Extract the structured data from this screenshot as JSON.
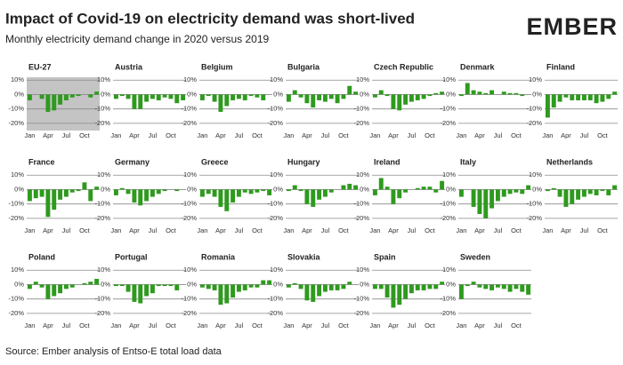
{
  "title": "Impact of Covid-19 on electricity demand was short-lived",
  "subtitle": "Monthly electricity demand change in 2020 versus 2019",
  "logo": "EMBER",
  "source": "Source: Ember analysis of Entso-E total load data",
  "chart_data": [
    {
      "type": "bar",
      "title": "EU-27",
      "highlight": "#c4c4c4",
      "color": "#2e9a1e",
      "categories": [
        "Jan",
        null,
        null,
        "Apr",
        null,
        null,
        "Jul",
        null,
        null,
        "Oct",
        null,
        null
      ],
      "values": [
        -4,
        0,
        -3,
        -12,
        -11,
        -7,
        -4,
        -2,
        -1,
        0,
        -2,
        2
      ],
      "ylim": [
        -25,
        12
      ],
      "yticks": [
        {
          "value": 10,
          "label": "10%"
        },
        {
          "value": 0,
          "label": "0%"
        },
        {
          "value": -10,
          "label": "-10%"
        },
        {
          "value": -20,
          "label": "-20%"
        }
      ],
      "grid": true
    },
    {
      "type": "bar",
      "title": "Austria",
      "color": "#2e9a1e",
      "categories": [
        "Jan",
        null,
        null,
        "Apr",
        null,
        null,
        "Jul",
        null,
        null,
        "Oct",
        null,
        null
      ],
      "values": [
        -3,
        -1,
        -3,
        -10,
        -10,
        -5,
        -3,
        -4,
        -2,
        -3,
        -6,
        -4
      ],
      "ylim": [
        -25,
        12
      ],
      "yticks": [
        {
          "value": 10,
          "label": "10%"
        },
        {
          "value": 0,
          "label": "0%"
        },
        {
          "value": -10,
          "label": "-10%"
        },
        {
          "value": -20,
          "label": "-20%"
        }
      ],
      "grid": true
    },
    {
      "type": "bar",
      "title": "Belgium",
      "color": "#2e9a1e",
      "categories": [
        "Jan",
        null,
        null,
        "Apr",
        null,
        null,
        "Jul",
        null,
        null,
        "Oct",
        null,
        null
      ],
      "values": [
        -4,
        -1,
        -5,
        -12,
        -8,
        -4,
        -3,
        -4,
        -1,
        -2,
        -4,
        0
      ],
      "ylim": [
        -25,
        12
      ],
      "yticks": [
        {
          "value": 10,
          "label": "10%"
        },
        {
          "value": 0,
          "label": "0%"
        },
        {
          "value": -10,
          "label": "-10%"
        },
        {
          "value": -20,
          "label": "-20%"
        }
      ],
      "grid": true
    },
    {
      "type": "bar",
      "title": "Bulgaria",
      "color": "#2e9a1e",
      "categories": [
        "Jan",
        null,
        null,
        "Apr",
        null,
        null,
        "Jul",
        null,
        null,
        "Oct",
        null,
        null
      ],
      "values": [
        -5,
        3,
        -2,
        -6,
        -9,
        -4,
        -5,
        -3,
        -6,
        -3,
        6,
        2
      ],
      "ylim": [
        -25,
        12
      ],
      "yticks": [
        {
          "value": 10,
          "label": "10%"
        },
        {
          "value": 0,
          "label": "0%"
        },
        {
          "value": -10,
          "label": "-10%"
        },
        {
          "value": -20,
          "label": "-20%"
        }
      ],
      "grid": true
    },
    {
      "type": "bar",
      "title": "Czech Republic",
      "color": "#2e9a1e",
      "categories": [
        "Jan",
        null,
        null,
        "Apr",
        null,
        null,
        "Jul",
        null,
        null,
        "Oct",
        null,
        null
      ],
      "values": [
        -2,
        3,
        -1,
        -10,
        -11,
        -7,
        -5,
        -4,
        -3,
        -1,
        1,
        2
      ],
      "ylim": [
        -25,
        12
      ],
      "yticks": [
        {
          "value": 10,
          "label": "10%"
        },
        {
          "value": 0,
          "label": "0%"
        },
        {
          "value": -10,
          "label": "-10%"
        },
        {
          "value": -20,
          "label": "-20%"
        }
      ],
      "grid": true
    },
    {
      "type": "bar",
      "title": "Denmark",
      "color": "#2e9a1e",
      "categories": [
        "Jan",
        null,
        null,
        "Apr",
        null,
        null,
        "Jul",
        null,
        null,
        "Oct",
        null,
        null
      ],
      "values": [
        -1,
        8,
        3,
        2,
        1,
        3,
        0,
        2,
        1,
        1,
        -1,
        0
      ],
      "ylim": [
        -25,
        12
      ],
      "yticks": [
        {
          "value": 10,
          "label": "10%"
        },
        {
          "value": 0,
          "label": "0%"
        },
        {
          "value": -10,
          "label": "-10%"
        },
        {
          "value": -20,
          "label": "-20%"
        }
      ],
      "grid": true
    },
    {
      "type": "bar",
      "title": "Finland",
      "color": "#2e9a1e",
      "categories": [
        "Jan",
        null,
        null,
        "Apr",
        null,
        null,
        "Jul",
        null,
        null,
        "Oct",
        null,
        null
      ],
      "values": [
        -16,
        -9,
        -5,
        -2,
        -4,
        -4,
        -4,
        -4,
        -6,
        -5,
        -3,
        2
      ],
      "ylim": [
        -25,
        12
      ],
      "yticks": [
        {
          "value": 10,
          "label": "10%"
        },
        {
          "value": 0,
          "label": "0%"
        },
        {
          "value": -10,
          "label": "-10%"
        },
        {
          "value": -20,
          "label": "-20%"
        }
      ],
      "grid": true
    },
    {
      "type": "bar",
      "title": "France",
      "color": "#2e9a1e",
      "categories": [
        "Jan",
        null,
        null,
        "Apr",
        null,
        null,
        "Jul",
        null,
        null,
        "Oct",
        null,
        null
      ],
      "values": [
        -8,
        -6,
        -5,
        -19,
        -14,
        -7,
        -5,
        -2,
        -1,
        5,
        -8,
        2
      ],
      "ylim": [
        -25,
        12
      ],
      "yticks": [
        {
          "value": 10,
          "label": "10%"
        },
        {
          "value": 0,
          "label": "0%"
        },
        {
          "value": -10,
          "label": "-10%"
        },
        {
          "value": -20,
          "label": "-20%"
        }
      ],
      "grid": true
    },
    {
      "type": "bar",
      "title": "Germany",
      "color": "#2e9a1e",
      "categories": [
        "Jan",
        null,
        null,
        "Apr",
        null,
        null,
        "Jul",
        null,
        null,
        "Oct",
        null,
        null
      ],
      "values": [
        -4,
        1,
        -3,
        -9,
        -11,
        -8,
        -5,
        -3,
        -1,
        0,
        -1,
        0
      ],
      "ylim": [
        -25,
        12
      ],
      "yticks": [
        {
          "value": 10,
          "label": "10%"
        },
        {
          "value": 0,
          "label": "0%"
        },
        {
          "value": -10,
          "label": "-10%"
        },
        {
          "value": -20,
          "label": "-20%"
        }
      ],
      "grid": true
    },
    {
      "type": "bar",
      "title": "Greece",
      "color": "#2e9a1e",
      "categories": [
        "Jan",
        null,
        null,
        "Apr",
        null,
        null,
        "Jul",
        null,
        null,
        "Oct",
        null,
        null
      ],
      "values": [
        -5,
        -3,
        -5,
        -12,
        -15,
        -9,
        -5,
        -2,
        -3,
        -2,
        -1,
        -4
      ],
      "ylim": [
        -25,
        12
      ],
      "yticks": [
        {
          "value": 10,
          "label": "10%"
        },
        {
          "value": 0,
          "label": "0%"
        },
        {
          "value": -10,
          "label": "-10%"
        },
        {
          "value": -20,
          "label": "-20%"
        }
      ],
      "grid": true
    },
    {
      "type": "bar",
      "title": "Hungary",
      "color": "#2e9a1e",
      "categories": [
        "Jan",
        null,
        null,
        "Apr",
        null,
        null,
        "Jul",
        null,
        null,
        "Oct",
        null,
        null
      ],
      "values": [
        -1,
        3,
        -1,
        -10,
        -12,
        -7,
        -5,
        -2,
        0,
        3,
        4,
        3
      ],
      "ylim": [
        -25,
        12
      ],
      "yticks": [
        {
          "value": 10,
          "label": "10%"
        },
        {
          "value": 0,
          "label": "0%"
        },
        {
          "value": -10,
          "label": "-10%"
        },
        {
          "value": -20,
          "label": "-20%"
        }
      ],
      "grid": true
    },
    {
      "type": "bar",
      "title": "Ireland",
      "color": "#2e9a1e",
      "categories": [
        "Jan",
        null,
        null,
        "Apr",
        null,
        null,
        "Jul",
        null,
        null,
        "Oct",
        null,
        null
      ],
      "values": [
        -4,
        8,
        2,
        -10,
        -6,
        -2,
        0,
        1,
        2,
        2,
        -2,
        6
      ],
      "ylim": [
        -25,
        12
      ],
      "yticks": [
        {
          "value": 10,
          "label": "10%"
        },
        {
          "value": 0,
          "label": "0%"
        },
        {
          "value": -10,
          "label": "-10%"
        },
        {
          "value": -20,
          "label": "-20%"
        }
      ],
      "grid": true
    },
    {
      "type": "bar",
      "title": "Italy",
      "color": "#2e9a1e",
      "categories": [
        "Jan",
        null,
        null,
        "Apr",
        null,
        null,
        "Jul",
        null,
        null,
        "Oct",
        null,
        null
      ],
      "values": [
        -5,
        0,
        -12,
        -17,
        -20,
        -13,
        -8,
        -5,
        -3,
        -2,
        -3,
        3
      ],
      "ylim": [
        -25,
        12
      ],
      "yticks": [
        {
          "value": 10,
          "label": "10%"
        },
        {
          "value": 0,
          "label": "0%"
        },
        {
          "value": -10,
          "label": "-10%"
        },
        {
          "value": -20,
          "label": "-20%"
        }
      ],
      "grid": true
    },
    {
      "type": "bar",
      "title": "Netherlands",
      "color": "#2e9a1e",
      "categories": [
        "Jan",
        null,
        null,
        "Apr",
        null,
        null,
        "Jul",
        null,
        null,
        "Oct",
        null,
        null
      ],
      "values": [
        -1,
        1,
        -5,
        -12,
        -10,
        -7,
        -5,
        -3,
        -4,
        -1,
        -4,
        3
      ],
      "ylim": [
        -25,
        12
      ],
      "yticks": [
        {
          "value": 10,
          "label": "10%"
        },
        {
          "value": 0,
          "label": "0%"
        },
        {
          "value": -10,
          "label": "-10%"
        },
        {
          "value": -20,
          "label": "-20%"
        }
      ],
      "grid": true
    },
    {
      "type": "bar",
      "title": "Poland",
      "color": "#2e9a1e",
      "categories": [
        "Jan",
        null,
        null,
        "Apr",
        null,
        null,
        "Jul",
        null,
        null,
        "Oct",
        null,
        null
      ],
      "values": [
        -3,
        2,
        -2,
        -10,
        -8,
        -6,
        -3,
        -2,
        0,
        1,
        2,
        4
      ],
      "ylim": [
        -25,
        12
      ],
      "yticks": [
        {
          "value": 10,
          "label": "10%"
        },
        {
          "value": 0,
          "label": "0%"
        },
        {
          "value": -10,
          "label": "-10%"
        },
        {
          "value": -20,
          "label": "-20%"
        }
      ],
      "grid": true
    },
    {
      "type": "bar",
      "title": "Portugal",
      "color": "#2e9a1e",
      "categories": [
        "Jan",
        null,
        null,
        "Apr",
        null,
        null,
        "Jul",
        null,
        null,
        "Oct",
        null,
        null
      ],
      "values": [
        -1,
        -1,
        -5,
        -12,
        -13,
        -8,
        -6,
        -1,
        -1,
        -1,
        -4,
        0
      ],
      "ylim": [
        -25,
        12
      ],
      "yticks": [
        {
          "value": 10,
          "label": "10%"
        },
        {
          "value": 0,
          "label": "0%"
        },
        {
          "value": -10,
          "label": "-10%"
        },
        {
          "value": -20,
          "label": "-20%"
        }
      ],
      "grid": true
    },
    {
      "type": "bar",
      "title": "Romania",
      "color": "#2e9a1e",
      "categories": [
        "Jan",
        null,
        null,
        "Apr",
        null,
        null,
        "Jul",
        null,
        null,
        "Oct",
        null,
        null
      ],
      "values": [
        -2,
        -3,
        -4,
        -14,
        -13,
        -9,
        -5,
        -4,
        -2,
        -2,
        3,
        3
      ],
      "ylim": [
        -25,
        12
      ],
      "yticks": [
        {
          "value": 10,
          "label": "10%"
        },
        {
          "value": 0,
          "label": "0%"
        },
        {
          "value": -10,
          "label": "-10%"
        },
        {
          "value": -20,
          "label": "-20%"
        }
      ],
      "grid": true
    },
    {
      "type": "bar",
      "title": "Slovakia",
      "color": "#2e9a1e",
      "categories": [
        "Jan",
        null,
        null,
        "Apr",
        null,
        null,
        "Jul",
        null,
        null,
        "Oct",
        null,
        null
      ],
      "values": [
        -2,
        1,
        -3,
        -11,
        -12,
        -8,
        -5,
        -4,
        -4,
        -3,
        2,
        0
      ],
      "ylim": [
        -25,
        12
      ],
      "yticks": [
        {
          "value": 10,
          "label": "10%"
        },
        {
          "value": 0,
          "label": "0%"
        },
        {
          "value": -10,
          "label": "-10%"
        },
        {
          "value": -20,
          "label": "-20%"
        }
      ],
      "grid": true
    },
    {
      "type": "bar",
      "title": "Spain",
      "color": "#2e9a1e",
      "categories": [
        "Jan",
        null,
        null,
        "Apr",
        null,
        null,
        "Jul",
        null,
        null,
        "Oct",
        null,
        null
      ],
      "values": [
        -3,
        -3,
        -9,
        -16,
        -14,
        -10,
        -6,
        -4,
        -4,
        -3,
        -3,
        2
      ],
      "ylim": [
        -25,
        12
      ],
      "yticks": [
        {
          "value": 10,
          "label": "10%"
        },
        {
          "value": 0,
          "label": "0%"
        },
        {
          "value": -10,
          "label": "-10%"
        },
        {
          "value": -20,
          "label": "-20%"
        }
      ],
      "grid": true
    },
    {
      "type": "bar",
      "title": "Sweden",
      "color": "#2e9a1e",
      "categories": [
        "Jan",
        null,
        null,
        "Apr",
        null,
        null,
        "Jul",
        null,
        null,
        "Oct",
        null,
        null
      ],
      "values": [
        -10,
        -1,
        2,
        -2,
        -3,
        -4,
        -2,
        -3,
        -5,
        -3,
        -5,
        -7
      ],
      "ylim": [
        -25,
        12
      ],
      "yticks": [
        {
          "value": 10,
          "label": "10%"
        },
        {
          "value": 0,
          "label": "0%"
        },
        {
          "value": -10,
          "label": "-10%"
        },
        {
          "value": -20,
          "label": "-20%"
        }
      ],
      "grid": true
    }
  ]
}
